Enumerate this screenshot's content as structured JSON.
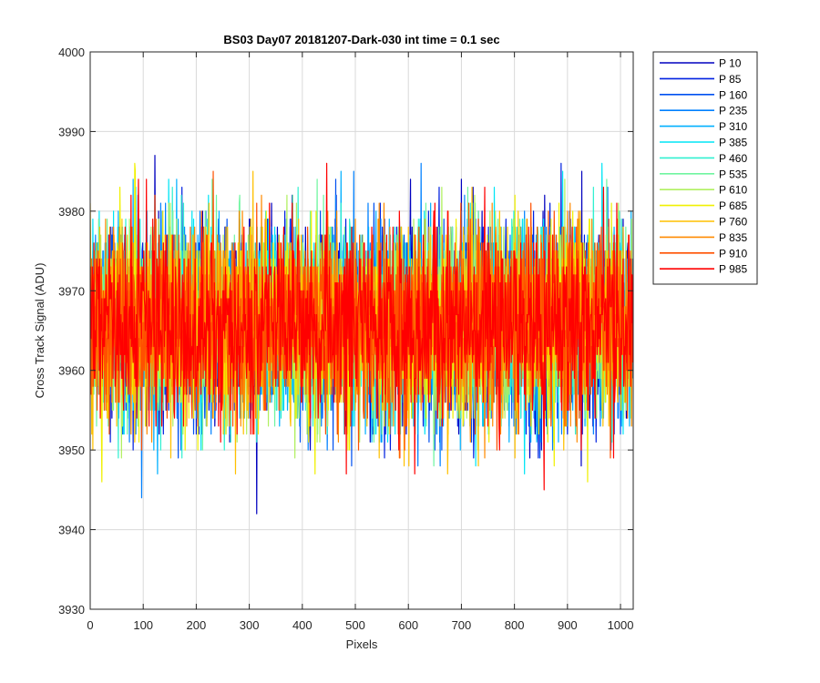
{
  "chart_data": {
    "type": "line",
    "title": "BS03 Day07 20181207-Dark-030 int time = 0.1 sec",
    "xlabel": "Pixels",
    "ylabel": "Cross Track Signal (ADU)",
    "xlim": [
      0,
      1024
    ],
    "ylim": [
      3930,
      4000
    ],
    "xticks": [
      "0",
      "100",
      "200",
      "300",
      "400",
      "500",
      "600",
      "700",
      "800",
      "900",
      "1000"
    ],
    "yticks": [
      "3930",
      "3940",
      "3950",
      "3960",
      "3970",
      "3980",
      "3990",
      "4000"
    ],
    "grid": true,
    "legend_position": "outside-top-right",
    "signal_mean": 3966,
    "signal_spread": 6,
    "num_pixels": 1024,
    "series": [
      {
        "name": "P 10",
        "color": "#0000bf"
      },
      {
        "name": "P 85",
        "color": "#0020e0"
      },
      {
        "name": "P 160",
        "color": "#0050f0"
      },
      {
        "name": "P 235",
        "color": "#0080ff"
      },
      {
        "name": "P 310",
        "color": "#00b0ff"
      },
      {
        "name": "P 385",
        "color": "#00e5f5"
      },
      {
        "name": "P 460",
        "color": "#30f0d0"
      },
      {
        "name": "P 535",
        "color": "#70f5a0"
      },
      {
        "name": "P 610",
        "color": "#b0f060"
      },
      {
        "name": "P 685",
        "color": "#f0f000"
      },
      {
        "name": "P 760",
        "color": "#ffc000"
      },
      {
        "name": "P 835",
        "color": "#ff8a00"
      },
      {
        "name": "P 910",
        "color": "#ff5000"
      },
      {
        "name": "P 985",
        "color": "#ff0000"
      }
    ]
  }
}
